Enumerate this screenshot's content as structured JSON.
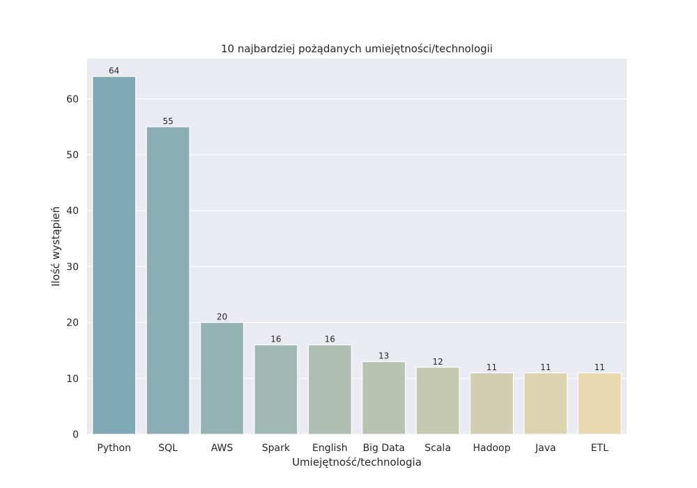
{
  "chart_data": {
    "type": "bar",
    "title": "10 najbardziej pożądanych umiejętności/technologii",
    "xlabel": "Umiejętność/technologia",
    "ylabel": "Ilość wystąpień",
    "categories": [
      "Python",
      "SQL",
      "AWS",
      "Spark",
      "English",
      "Big Data",
      "Scala",
      "Hadoop",
      "Java",
      "ETL"
    ],
    "values": [
      64,
      55,
      20,
      16,
      16,
      13,
      12,
      11,
      11,
      11
    ],
    "ylim": [
      0,
      67.2
    ],
    "yticks": [
      0,
      10,
      20,
      30,
      40,
      50,
      60
    ],
    "grid": true,
    "colors": {
      "background": "#eaeaf2",
      "grid": "#ffffff",
      "bar_start": "#7fa8b5",
      "bar_end": "#e8d9b0"
    }
  }
}
